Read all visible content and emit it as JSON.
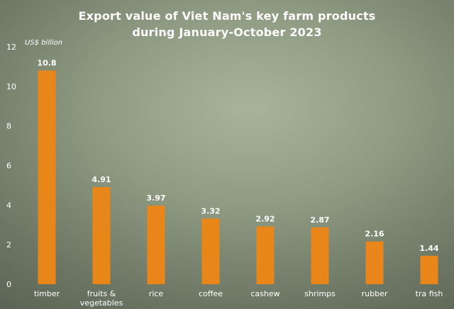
{
  "chart_data": {
    "type": "bar",
    "title": "Export value of Viet Nam's key farm products",
    "subtitle": "during January-October 2023",
    "ylabel": "US$ billion",
    "xlabel": "",
    "categories": [
      "timber",
      "fruits & vegetables",
      "rice",
      "coffee",
      "cashew",
      "shrimps",
      "rubber",
      "tra fish"
    ],
    "values": [
      10.8,
      4.91,
      3.97,
      3.32,
      2.92,
      2.87,
      2.16,
      1.44
    ],
    "value_labels": [
      "10.8",
      "4.91",
      "3.97",
      "3.32",
      "2.92",
      "2.87",
      "2.16",
      "1.44"
    ],
    "ylim": [
      0,
      12
    ],
    "yticks": [
      0,
      2,
      4,
      6,
      8,
      10,
      12
    ],
    "grid": false,
    "colors": {
      "bar": "#e8861a",
      "text": "#ffffff"
    }
  }
}
